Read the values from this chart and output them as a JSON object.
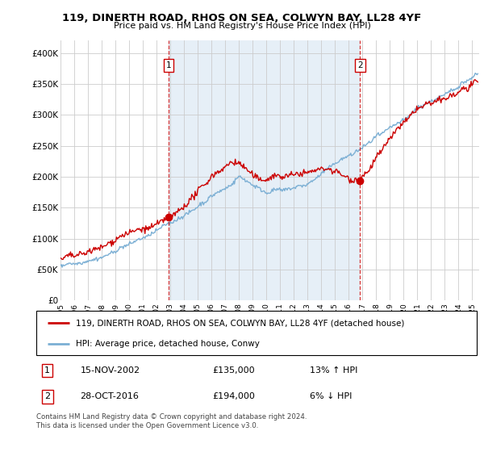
{
  "title": "119, DINERTH ROAD, RHOS ON SEA, COLWYN BAY, LL28 4YF",
  "subtitle": "Price paid vs. HM Land Registry's House Price Index (HPI)",
  "ylabel_ticks": [
    "£0",
    "£50K",
    "£100K",
    "£150K",
    "£200K",
    "£250K",
    "£300K",
    "£350K",
    "£400K"
  ],
  "ylim": [
    0,
    420000
  ],
  "xlim_start": 1995.0,
  "xlim_end": 2025.5,
  "x_tick_years": [
    1995,
    1996,
    1997,
    1998,
    1999,
    2000,
    2001,
    2002,
    2003,
    2004,
    2005,
    2006,
    2007,
    2008,
    2009,
    2010,
    2011,
    2012,
    2013,
    2014,
    2015,
    2016,
    2017,
    2018,
    2019,
    2020,
    2021,
    2022,
    2023,
    2024,
    2025
  ],
  "sale1_x": 2002.88,
  "sale1_y": 135000,
  "sale2_x": 2016.83,
  "sale2_y": 194000,
  "legend_line1": "119, DINERTH ROAD, RHOS ON SEA, COLWYN BAY, LL28 4YF (detached house)",
  "legend_line2": "HPI: Average price, detached house, Conwy",
  "table_row1_num": "1",
  "table_row1_date": "15-NOV-2002",
  "table_row1_price": "£135,000",
  "table_row1_hpi": "13% ↑ HPI",
  "table_row2_num": "2",
  "table_row2_date": "28-OCT-2016",
  "table_row2_price": "£194,000",
  "table_row2_hpi": "6% ↓ HPI",
  "footer": "Contains HM Land Registry data © Crown copyright and database right 2024.\nThis data is licensed under the Open Government Licence v3.0.",
  "color_red": "#cc0000",
  "color_blue": "#7bafd4",
  "shade_color": "#dce9f5",
  "grid_color": "#cccccc",
  "plot_bg": "#ffffff"
}
